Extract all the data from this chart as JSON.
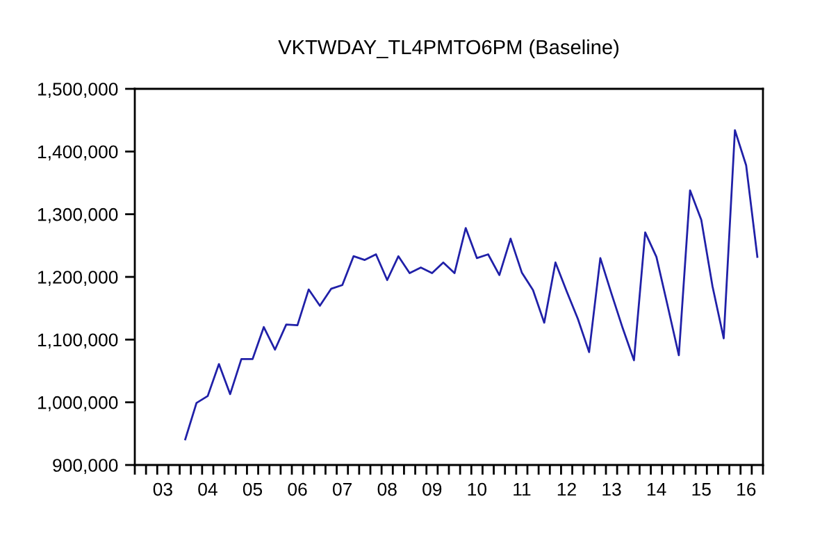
{
  "chart_data": {
    "type": "line",
    "title": "VKTWDAY_TL4PMTO6PM (Baseline)",
    "categories": [
      null,
      null,
      "03",
      null,
      null,
      null,
      "04",
      null,
      null,
      null,
      "05",
      null,
      null,
      null,
      "06",
      null,
      null,
      null,
      "07",
      null,
      null,
      null,
      "08",
      null,
      null,
      null,
      "09",
      null,
      null,
      null,
      "10",
      null,
      null,
      null,
      "11",
      null,
      null,
      null,
      "12",
      null,
      null,
      null,
      "13",
      null,
      null,
      null,
      "14",
      null,
      null,
      null,
      "15",
      null,
      null,
      null,
      "16",
      null
    ],
    "series": [
      {
        "color": "#2020a8",
        "values": [
          null,
          null,
          null,
          null,
          941000,
          999000,
          1010000,
          1061000,
          1013000,
          1069000,
          1069000,
          1120000,
          1084000,
          1124000,
          1123000,
          1180000,
          1154000,
          1181000,
          1187000,
          1233000,
          1227000,
          1236000,
          1195000,
          1233000,
          1206000,
          1215000,
          1206000,
          1223000,
          1206000,
          1278000,
          1230000,
          1236000,
          1203000,
          1261000,
          1207000,
          1179000,
          1127000,
          1223000,
          1177000,
          1133000,
          1080000,
          1230000,
          1173000,
          1118000,
          1067000,
          1271000,
          1232000,
          1154000,
          1075000,
          1338000,
          1291000,
          1185000,
          1102000,
          1434000,
          1378000,
          1232000
        ]
      }
    ],
    "ylim": [
      900000,
      1500000
    ],
    "yticks": [
      {
        "value": 900000,
        "label": "900,000"
      },
      {
        "value": 1000000,
        "label": "1,000,000"
      },
      {
        "value": 1100000,
        "label": "1,100,000"
      },
      {
        "value": 1200000,
        "label": "1,200,000"
      },
      {
        "value": 1300000,
        "label": "1,300,000"
      },
      {
        "value": 1400000,
        "label": "1,400,000"
      },
      {
        "value": 1500000,
        "label": "1,500,000"
      }
    ],
    "grid": false,
    "marker": "none",
    "line_style": "solid"
  }
}
